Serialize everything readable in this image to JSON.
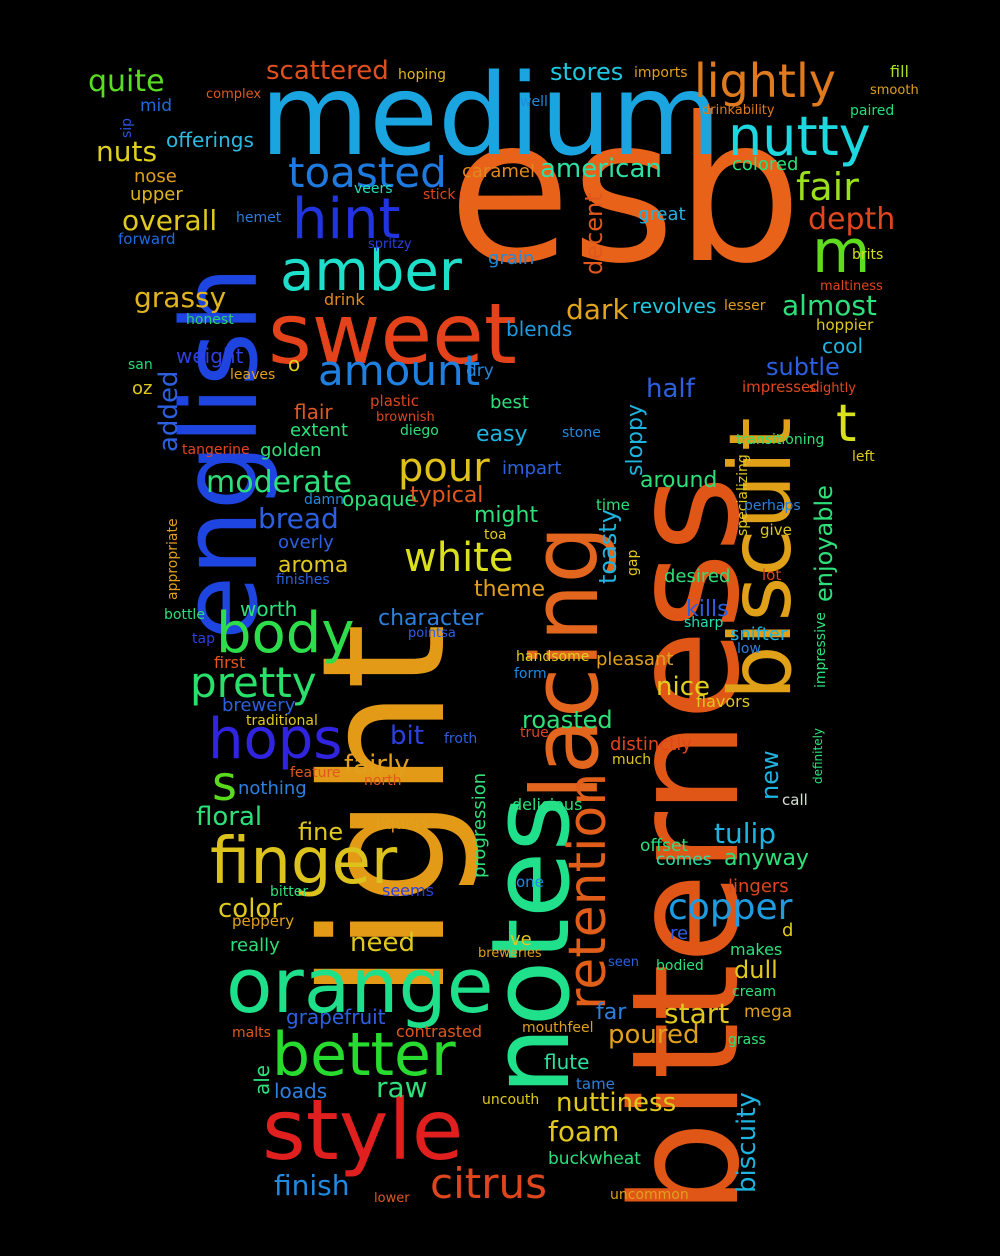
{
  "words": [
    {
      "text": "esb",
      "color": "#E8621A"
    },
    {
      "text": "light",
      "color": "#E39A17"
    },
    {
      "text": "bitterness",
      "color": "#E05616"
    },
    {
      "text": "medium",
      "color": "#1AA5E0"
    },
    {
      "text": "english",
      "color": "#1E45E0"
    },
    {
      "text": "notes",
      "color": "#21E08C"
    },
    {
      "text": "lacing",
      "color": "#E3661E"
    },
    {
      "text": "biscuit",
      "color": "#E0A018"
    },
    {
      "text": "sweet",
      "color": "#E4421A"
    },
    {
      "text": "style",
      "color": "#E01F1F"
    },
    {
      "text": "orange",
      "color": "#1FE08A"
    },
    {
      "text": "finger",
      "color": "#DCC21C"
    },
    {
      "text": "better",
      "color": "#27DB2F"
    },
    {
      "text": "body",
      "color": "#2DDE4A"
    },
    {
      "text": "hops",
      "color": "#3024E0"
    },
    {
      "text": "lightly",
      "color": "#E07A1E"
    },
    {
      "text": "nutty",
      "color": "#1ED8E0"
    },
    {
      "text": "amber",
      "color": "#1EDFC9"
    },
    {
      "text": "hint",
      "color": "#2134E0"
    },
    {
      "text": "toasted",
      "color": "#1F7AE0"
    },
    {
      "text": "retention",
      "color": "#E05E1A"
    },
    {
      "text": "pretty",
      "color": "#29E06A"
    },
    {
      "text": "citrus",
      "color": "#E0461E"
    },
    {
      "text": "amount",
      "color": "#1F80E0"
    },
    {
      "text": "pour",
      "color": "#E0C01A"
    },
    {
      "text": "white",
      "color": "#DBE01E"
    },
    {
      "text": "copper",
      "color": "#1F9BE0"
    },
    {
      "text": "m",
      "color": "#5FDC1E"
    },
    {
      "text": "t",
      "color": "#D9E01E"
    },
    {
      "text": "s",
      "color": "#5ADA1C"
    },
    {
      "text": "fair",
      "color": "#9BE01E"
    },
    {
      "text": "moderate",
      "color": "#2DE07A"
    },
    {
      "text": "quite",
      "color": "#5ADC23"
    },
    {
      "text": "scattered",
      "color": "#E0501E"
    },
    {
      "text": "hoping",
      "color": "#E0B41E"
    },
    {
      "text": "stores",
      "color": "#1FC7E0"
    },
    {
      "text": "imports",
      "color": "#E0A01E"
    },
    {
      "text": "fill",
      "color": "#A6E01E"
    },
    {
      "text": "smooth",
      "color": "#E0A01E"
    },
    {
      "text": "mid",
      "color": "#1F6AE0"
    },
    {
      "text": "complex",
      "color": "#E05A1E"
    },
    {
      "text": "well",
      "color": "#1F8AE0"
    },
    {
      "text": "drinkability",
      "color": "#E07A1E"
    },
    {
      "text": "paired",
      "color": "#1FE07A"
    },
    {
      "text": "sip",
      "color": "#2D53E0"
    },
    {
      "text": "offerings",
      "color": "#2DB8E0"
    },
    {
      "text": "nuts",
      "color": "#E0D01E"
    },
    {
      "text": "nose",
      "color": "#E0A01E"
    },
    {
      "text": "caramel",
      "color": "#E08A1E"
    },
    {
      "text": "american",
      "color": "#2DE0A4"
    },
    {
      "text": "colored",
      "color": "#2DE07A"
    },
    {
      "text": "upper",
      "color": "#E0B41E"
    },
    {
      "text": "veers",
      "color": "#1EE0B4"
    },
    {
      "text": "stick",
      "color": "#E0461E"
    },
    {
      "text": "overall",
      "color": "#E0C81E"
    },
    {
      "text": "hemet",
      "color": "#2D7AE0"
    },
    {
      "text": "great",
      "color": "#1FB4E0"
    },
    {
      "text": "depth",
      "color": "#E0461E"
    },
    {
      "text": "forward",
      "color": "#1F6AE0"
    },
    {
      "text": "spritzy",
      "color": "#2D40E0"
    },
    {
      "text": "decent",
      "color": "#E0581E"
    },
    {
      "text": "grain",
      "color": "#1F8AE0"
    },
    {
      "text": "brits",
      "color": "#D4E01E"
    },
    {
      "text": "maltiness",
      "color": "#E0461E"
    },
    {
      "text": "grassy",
      "color": "#E0B41E"
    },
    {
      "text": "drink",
      "color": "#E08A1E"
    },
    {
      "text": "dark",
      "color": "#E0A41E"
    },
    {
      "text": "revolves",
      "color": "#1FC8E0"
    },
    {
      "text": "lesser",
      "color": "#E0A01E"
    },
    {
      "text": "almost",
      "color": "#2DE07A"
    },
    {
      "text": "honest",
      "color": "#2DD26A"
    },
    {
      "text": "blends",
      "color": "#1F9AE0"
    },
    {
      "text": "hoppier",
      "color": "#E0C81E"
    },
    {
      "text": "weight",
      "color": "#2D40E0"
    },
    {
      "text": "cool",
      "color": "#1FB4E0"
    },
    {
      "text": "san",
      "color": "#1FE07A"
    },
    {
      "text": "o",
      "color": "#E0D01E"
    },
    {
      "text": "dry",
      "color": "#1F8AE0"
    },
    {
      "text": "subtle",
      "color": "#2D60E0"
    },
    {
      "text": "leaves",
      "color": "#E0A01E"
    },
    {
      "text": "half",
      "color": "#2D60E0"
    },
    {
      "text": "impressed",
      "color": "#E0461E"
    },
    {
      "text": "slightly",
      "color": "#E0461E"
    },
    {
      "text": "oz",
      "color": "#E0C81E"
    },
    {
      "text": "added",
      "color": "#2D60E0"
    },
    {
      "text": "plastic",
      "color": "#E0461E"
    },
    {
      "text": "brownish",
      "color": "#E0461E"
    },
    {
      "text": "best",
      "color": "#2DE07A"
    },
    {
      "text": "flair",
      "color": "#E0581E"
    },
    {
      "text": "extent",
      "color": "#2DE07A"
    },
    {
      "text": "diego",
      "color": "#2DE07A"
    },
    {
      "text": "stone",
      "color": "#1F8AE0"
    },
    {
      "text": "transitioning",
      "color": "#2DE07A"
    },
    {
      "text": "easy",
      "color": "#1FB4E0"
    },
    {
      "text": "sloppy",
      "color": "#1FB4E0"
    },
    {
      "text": "specializing",
      "color": "#E0C81E"
    },
    {
      "text": "tangerine",
      "color": "#E0461E"
    },
    {
      "text": "golden",
      "color": "#2DE07A"
    },
    {
      "text": "impart",
      "color": "#2D60E0"
    },
    {
      "text": "left",
      "color": "#E0C81E"
    },
    {
      "text": "enjoyable",
      "color": "#2DE07A"
    },
    {
      "text": "damn",
      "color": "#1F8AE0"
    },
    {
      "text": "opaque",
      "color": "#2DE07A"
    },
    {
      "text": "around",
      "color": "#2DE07A"
    },
    {
      "text": "typical",
      "color": "#E0581E"
    },
    {
      "text": "time",
      "color": "#2DE07A"
    },
    {
      "text": "perhaps",
      "color": "#2D80E0"
    },
    {
      "text": "might",
      "color": "#2DE07A"
    },
    {
      "text": "bread",
      "color": "#2D60E0"
    },
    {
      "text": "give",
      "color": "#E0C81E"
    },
    {
      "text": "overly",
      "color": "#2D60E0"
    },
    {
      "text": "toa",
      "color": "#E0C81E"
    },
    {
      "text": "appropriate",
      "color": "#E0A01E"
    },
    {
      "text": "aroma",
      "color": "#E0C81E"
    },
    {
      "text": "finishes",
      "color": "#2D60E0"
    },
    {
      "text": "gap",
      "color": "#E0C81E"
    },
    {
      "text": "toasty",
      "color": "#1FB4E0"
    },
    {
      "text": "desired",
      "color": "#2DE07A"
    },
    {
      "text": "lot",
      "color": "#E0461E"
    },
    {
      "text": "theme",
      "color": "#E0A01E"
    },
    {
      "text": "worth",
      "color": "#2DE07A"
    },
    {
      "text": "bottle",
      "color": "#2DE07A"
    },
    {
      "text": "character",
      "color": "#2D80E0"
    },
    {
      "text": "kills",
      "color": "#2D60E0"
    },
    {
      "text": "sharp",
      "color": "#1FE0B4"
    },
    {
      "text": "tap",
      "color": "#2D40E0"
    },
    {
      "text": "pointsa",
      "color": "#2D60E0"
    },
    {
      "text": "snifter",
      "color": "#1FB4E0"
    },
    {
      "text": "impressive",
      "color": "#2DE07A"
    },
    {
      "text": "low",
      "color": "#2D80E0"
    },
    {
      "text": "first",
      "color": "#E0581E"
    },
    {
      "text": "handsome",
      "color": "#E0D01E"
    },
    {
      "text": "pleasant",
      "color": "#E0A01E"
    },
    {
      "text": "definitely",
      "color": "#2DE07A"
    },
    {
      "text": "form",
      "color": "#1F8AE0"
    },
    {
      "text": "nice",
      "color": "#E0D01E"
    },
    {
      "text": "brewery",
      "color": "#2D60E0"
    },
    {
      "text": "flavors",
      "color": "#E0C81E"
    },
    {
      "text": "traditional",
      "color": "#E0C81E"
    },
    {
      "text": "roasted",
      "color": "#2DE07A"
    },
    {
      "text": "bit",
      "color": "#2D40E0"
    },
    {
      "text": "froth",
      "color": "#2D60E0"
    },
    {
      "text": "true",
      "color": "#E0461E"
    },
    {
      "text": "distinctly",
      "color": "#E0461E"
    },
    {
      "text": "much",
      "color": "#E0C81E"
    },
    {
      "text": "fairly",
      "color": "#E0A01E"
    },
    {
      "text": "new",
      "color": "#1FB4E0"
    },
    {
      "text": "feature",
      "color": "#E0581E"
    },
    {
      "text": "north",
      "color": "#E0581E"
    },
    {
      "text": "progression",
      "color": "#2DE07A"
    },
    {
      "text": "call",
      "color": "#D4E0D0"
    },
    {
      "text": "nothing",
      "color": "#2D80E0"
    },
    {
      "text": "delicious",
      "color": "#2DE07A"
    },
    {
      "text": "floral",
      "color": "#2DE07A"
    },
    {
      "text": "liquors",
      "color": "#E0A01E"
    },
    {
      "text": "fine",
      "color": "#E0C81E"
    },
    {
      "text": "tulip",
      "color": "#1FB4E0"
    },
    {
      "text": "offset",
      "color": "#2DE07A"
    },
    {
      "text": "comes",
      "color": "#2DE0A4"
    },
    {
      "text": "anyway",
      "color": "#2DE07A"
    },
    {
      "text": "bitter",
      "color": "#2DE07A"
    },
    {
      "text": "seems",
      "color": "#2D40E0"
    },
    {
      "text": "one",
      "color": "#1F8AE0"
    },
    {
      "text": "lingers",
      "color": "#E0461E"
    },
    {
      "text": "color",
      "color": "#E0C81E"
    },
    {
      "text": "peppery",
      "color": "#E0A01E"
    },
    {
      "text": "re",
      "color": "#2D60E0"
    },
    {
      "text": "d",
      "color": "#E0C81E"
    },
    {
      "text": "really",
      "color": "#2DE07A"
    },
    {
      "text": "need",
      "color": "#E0C81E"
    },
    {
      "text": "ve",
      "color": "#E0C81E"
    },
    {
      "text": "breweries",
      "color": "#E0A01E"
    },
    {
      "text": "makes",
      "color": "#2DE07A"
    },
    {
      "text": "seen",
      "color": "#2D60E0"
    },
    {
      "text": "bodied",
      "color": "#2DE07A"
    },
    {
      "text": "dull",
      "color": "#E0C81E"
    },
    {
      "text": "cream",
      "color": "#2DE07A"
    },
    {
      "text": "grapefruit",
      "color": "#2D60E0"
    },
    {
      "text": "start",
      "color": "#E0C81E"
    },
    {
      "text": "mega",
      "color": "#E0A01E"
    },
    {
      "text": "far",
      "color": "#2D80E0"
    },
    {
      "text": "malts",
      "color": "#E0581E"
    },
    {
      "text": "contrasted",
      "color": "#E0581E"
    },
    {
      "text": "mouthfeel",
      "color": "#E0A01E"
    },
    {
      "text": "poured",
      "color": "#E0A01E"
    },
    {
      "text": "grass",
      "color": "#2DE07A"
    },
    {
      "text": "ale",
      "color": "#2DE07A"
    },
    {
      "text": "raw",
      "color": "#2DE07A"
    },
    {
      "text": "flute",
      "color": "#2DE0A4"
    },
    {
      "text": "biscuity",
      "color": "#1FB4E0"
    },
    {
      "text": "loads",
      "color": "#2D80E0"
    },
    {
      "text": "tame",
      "color": "#2D80E0"
    },
    {
      "text": "nuttiness",
      "color": "#E0C81E"
    },
    {
      "text": "uncouth",
      "color": "#E0C81E"
    },
    {
      "text": "foam",
      "color": "#E0C81E"
    },
    {
      "text": "finish",
      "color": "#1F8AE0"
    },
    {
      "text": "buckwheat",
      "color": "#2DE07A"
    },
    {
      "text": "lower",
      "color": "#E0581E"
    },
    {
      "text": "uncommon",
      "color": "#E0A01E"
    }
  ]
}
